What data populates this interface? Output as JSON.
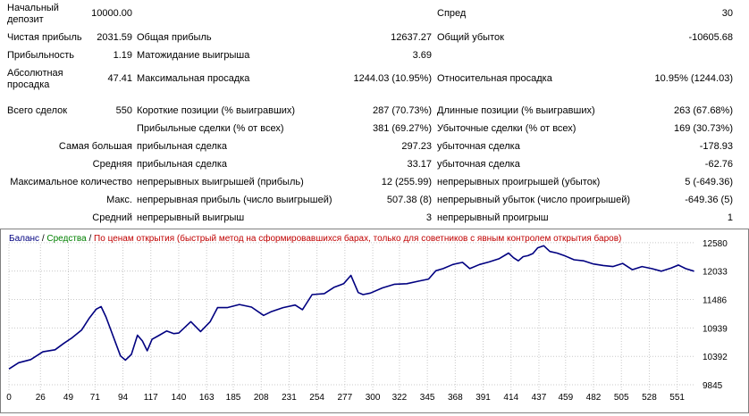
{
  "report": {
    "initial_deposit": {
      "label": "Начальный депозит",
      "value": "10000.00"
    },
    "spread": {
      "label": "Спред",
      "value": "30"
    },
    "net_profit": {
      "label": "Чистая прибыль",
      "value": "2031.59"
    },
    "gross_profit": {
      "label": "Общая прибыль",
      "value": "12637.27"
    },
    "gross_loss": {
      "label": "Общий убыток",
      "value": "-10605.68"
    },
    "profit_factor": {
      "label": "Прибыльность",
      "value": "1.19"
    },
    "expected_payoff": {
      "label": "Матожидание выигрыша",
      "value": "3.69"
    },
    "absolute_drawdown": {
      "label": "Абсолютная просадка",
      "value": "47.41"
    },
    "maximal_drawdown": {
      "label": "Максимальная просадка",
      "value": "1244.03 (10.95%)"
    },
    "relative_drawdown": {
      "label": "Относительная просадка",
      "value": "10.95% (1244.03)"
    },
    "total_trades": {
      "label": "Всего сделок",
      "value": "550"
    },
    "short_positions": {
      "label": "Короткие позиции (% выигравших)",
      "value": "287 (70.73%)"
    },
    "long_positions": {
      "label": "Длинные позиции (% выигравших)",
      "value": "263 (67.68%)"
    },
    "profit_trades": {
      "label": "Прибыльные сделки (% от всех)",
      "value": "381 (69.27%)"
    },
    "loss_trades": {
      "label": "Убыточные сделки (% от всех)",
      "value": "169 (30.73%)"
    },
    "largest": {
      "label": "Самая большая",
      "profit_label": "прибыльная сделка",
      "profit_value": "297.23",
      "loss_label": "убыточная сделка",
      "loss_value": "-178.93"
    },
    "average": {
      "label": "Средняя",
      "profit_label": "прибыльная сделка",
      "profit_value": "33.17",
      "loss_label": "убыточная сделка",
      "loss_value": "-62.76"
    },
    "maximum": {
      "label": "Максимальное количество",
      "wins_label": "непрерывных выигрышей (прибыль)",
      "wins_value": "12 (255.99)",
      "losses_label": "непрерывных проигрышей (убыток)",
      "losses_value": "5 (-649.36)"
    },
    "maximal": {
      "label": "Макс.",
      "wins_label": "непрерывная прибыль (число выигрышей)",
      "wins_value": "507.38 (8)",
      "losses_label": "непрерывный убыток (число проигрышей)",
      "losses_value": "-649.36 (5)"
    },
    "avg_consecutive": {
      "label": "Средний",
      "wins_label": "непрерывный выигрыш",
      "wins_value": "3",
      "losses_label": "непрерывный проигрыш",
      "losses_value": "1"
    }
  },
  "chart_legend": {
    "balance": "Баланс",
    "sep1": " / ",
    "equity": "Средства",
    "sep2": " / ",
    "model": "По ценам открытия (быстрый метод на сформировавшихся барах, только для советников с явным контролем открытия баров)"
  },
  "colors": {
    "balance": "#000080",
    "equity": "#008000",
    "model": "#c00000",
    "grid": "#c8c8c8"
  },
  "chart_data": {
    "type": "line",
    "title": "",
    "xlabel": "",
    "ylabel": "",
    "x_ticks": [
      0,
      26,
      49,
      71,
      94,
      117,
      140,
      163,
      185,
      208,
      231,
      254,
      277,
      300,
      322,
      345,
      368,
      391,
      414,
      437,
      459,
      482,
      505,
      528,
      551
    ],
    "y_ticks": [
      9845,
      10392,
      10939,
      11486,
      12033,
      12580
    ],
    "xlim": [
      0,
      566
    ],
    "ylim": [
      9760,
      12680
    ],
    "grid": true,
    "series": [
      {
        "name": "Баланс",
        "points": [
          [
            0,
            10150
          ],
          [
            8,
            10270
          ],
          [
            18,
            10330
          ],
          [
            28,
            10480
          ],
          [
            38,
            10520
          ],
          [
            45,
            10640
          ],
          [
            52,
            10750
          ],
          [
            60,
            10900
          ],
          [
            66,
            11120
          ],
          [
            72,
            11300
          ],
          [
            76,
            11350
          ],
          [
            80,
            11150
          ],
          [
            84,
            10900
          ],
          [
            88,
            10650
          ],
          [
            92,
            10400
          ],
          [
            96,
            10320
          ],
          [
            101,
            10430
          ],
          [
            106,
            10800
          ],
          [
            110,
            10690
          ],
          [
            114,
            10500
          ],
          [
            118,
            10720
          ],
          [
            124,
            10800
          ],
          [
            130,
            10880
          ],
          [
            136,
            10830
          ],
          [
            140,
            10840
          ],
          [
            150,
            11060
          ],
          [
            158,
            10870
          ],
          [
            166,
            11060
          ],
          [
            172,
            11330
          ],
          [
            180,
            11330
          ],
          [
            190,
            11390
          ],
          [
            200,
            11340
          ],
          [
            210,
            11180
          ],
          [
            216,
            11250
          ],
          [
            226,
            11330
          ],
          [
            236,
            11380
          ],
          [
            242,
            11290
          ],
          [
            250,
            11580
          ],
          [
            260,
            11600
          ],
          [
            268,
            11720
          ],
          [
            276,
            11790
          ],
          [
            282,
            11950
          ],
          [
            288,
            11620
          ],
          [
            292,
            11580
          ],
          [
            298,
            11610
          ],
          [
            308,
            11710
          ],
          [
            318,
            11780
          ],
          [
            328,
            11790
          ],
          [
            338,
            11840
          ],
          [
            346,
            11880
          ],
          [
            352,
            12040
          ],
          [
            358,
            12080
          ],
          [
            366,
            12160
          ],
          [
            374,
            12200
          ],
          [
            380,
            12080
          ],
          [
            388,
            12160
          ],
          [
            396,
            12210
          ],
          [
            404,
            12270
          ],
          [
            412,
            12380
          ],
          [
            416,
            12290
          ],
          [
            420,
            12230
          ],
          [
            424,
            12310
          ],
          [
            428,
            12330
          ],
          [
            432,
            12370
          ],
          [
            436,
            12480
          ],
          [
            441,
            12520
          ],
          [
            446,
            12410
          ],
          [
            452,
            12380
          ],
          [
            458,
            12330
          ],
          [
            466,
            12250
          ],
          [
            474,
            12230
          ],
          [
            482,
            12170
          ],
          [
            490,
            12140
          ],
          [
            498,
            12120
          ],
          [
            506,
            12180
          ],
          [
            514,
            12060
          ],
          [
            522,
            12120
          ],
          [
            530,
            12080
          ],
          [
            538,
            12030
          ],
          [
            546,
            12090
          ],
          [
            552,
            12150
          ],
          [
            558,
            12080
          ],
          [
            565,
            12030
          ]
        ]
      }
    ]
  }
}
